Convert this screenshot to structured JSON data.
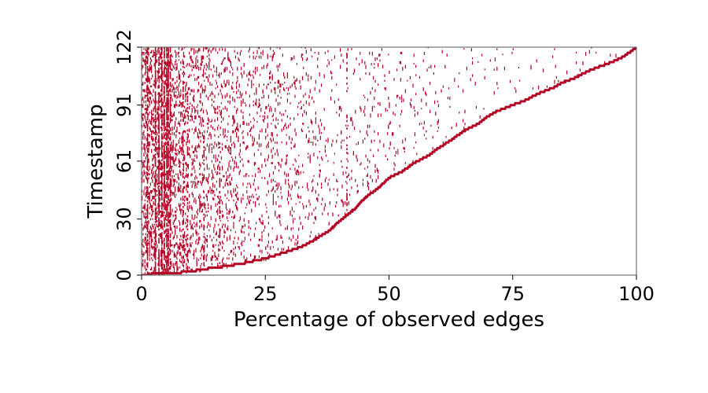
{
  "chart_data": {
    "type": "heatmap",
    "title": "",
    "xlabel": "Percentage of observed edges",
    "ylabel": "Timestamp",
    "xlim": [
      0,
      100
    ],
    "ylim": [
      0,
      122
    ],
    "x_ticks": [
      "0",
      "25",
      "50",
      "75",
      "100"
    ],
    "y_ticks": [
      "0",
      "30",
      "61",
      "91",
      "122"
    ],
    "mark_color": "#b40426",
    "background_color": "#ffffff",
    "frontier": {
      "name": "",
      "x": [
        0,
        2,
        5,
        8,
        10,
        12,
        15,
        20,
        25,
        30,
        33,
        35,
        38,
        40,
        43,
        45,
        48,
        50,
        53,
        55,
        58,
        60,
        63,
        65,
        68,
        70,
        72,
        75,
        78,
        80,
        83,
        85,
        88,
        90,
        93,
        96,
        98,
        100
      ],
      "y": [
        0,
        0.5,
        1,
        1.5,
        2,
        3,
        4,
        6,
        9,
        13,
        16,
        19,
        24,
        29,
        35,
        41,
        47,
        52,
        56,
        60,
        64,
        68,
        73,
        77,
        81,
        85,
        88,
        91,
        94,
        97,
        100,
        103,
        106,
        109,
        112,
        115,
        118,
        122
      ]
    },
    "dense_columns_x": [
      1.2,
      2.8,
      3.5,
      4.1,
      4.6,
      5.1,
      5.4,
      5.8,
      8.4,
      9.3,
      12.6,
      15.8,
      41.5,
      90
    ],
    "scatter_density": "decreasing with x"
  }
}
